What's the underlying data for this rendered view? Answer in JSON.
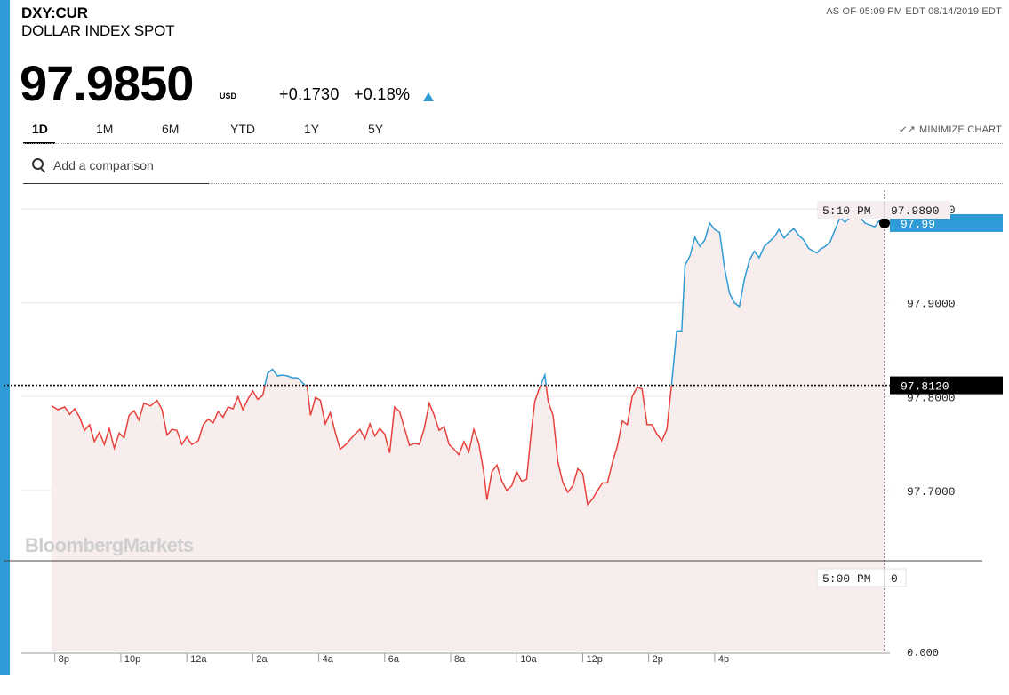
{
  "header": {
    "ticker": "DXY:CUR",
    "name": "DOLLAR INDEX SPOT",
    "as_of": "AS OF 05:09 PM EDT 08/14/2019 EDT",
    "price": "97.9850",
    "currency": "USD",
    "change": "+0.1730",
    "change_pct": "+0.18%"
  },
  "tabs": [
    "1D",
    "1M",
    "6M",
    "YTD",
    "1Y",
    "5Y"
  ],
  "active_tab": "1D",
  "minimize_label": "MINIMIZE CHART",
  "search": {
    "placeholder": "Add a comparison"
  },
  "watermark": "BloombergMarkets",
  "colors": {
    "accent": "#2e9bd6",
    "line_up": "#2e9bd6",
    "line_down": "#e8413c",
    "area_fill": "#f7eded",
    "prev_close_badge": "#000000"
  },
  "chart_data": {
    "type": "line",
    "x_tick_labels": [
      "8p",
      "10p",
      "12a",
      "2a",
      "4a",
      "6a",
      "8a",
      "10a",
      "12p",
      "2p",
      "4p"
    ],
    "y_tick_labels": [
      "98.0000",
      "97.9000",
      "97.8000",
      "97.7000"
    ],
    "y_ticks": [
      98.0,
      97.9,
      97.8,
      97.7
    ],
    "ylim": [
      97.625,
      98.02
    ],
    "hours_from_6pm_range": [
      -0.2,
      23.3
    ],
    "previous_close": 97.812,
    "previous_close_label": "97.8120",
    "last_value_label": "97.99",
    "hover_time_label": "5:10 PM",
    "hover_value_label": "97.9890",
    "volume_time_label": "5:00 PM",
    "volume_value_label": "0",
    "volume_axis_label": "0.000",
    "series": [
      {
        "points": [
          [
            0.0,
            97.79
          ],
          [
            0.2,
            97.786
          ],
          [
            0.4,
            97.789
          ],
          [
            0.55,
            97.781
          ],
          [
            0.7,
            97.787
          ],
          [
            0.85,
            97.778
          ],
          [
            1.0,
            97.764
          ],
          [
            1.15,
            97.77
          ],
          [
            1.3,
            97.752
          ],
          [
            1.45,
            97.762
          ],
          [
            1.6,
            97.749
          ],
          [
            1.75,
            97.766
          ],
          [
            1.9,
            97.745
          ],
          [
            2.05,
            97.761
          ],
          [
            2.2,
            97.756
          ],
          [
            2.35,
            97.78
          ],
          [
            2.5,
            97.785
          ],
          [
            2.65,
            97.775
          ],
          [
            2.8,
            97.793
          ],
          [
            3.0,
            97.79
          ],
          [
            3.2,
            97.796
          ],
          [
            3.35,
            97.786
          ],
          [
            3.5,
            97.759
          ],
          [
            3.65,
            97.765
          ],
          [
            3.8,
            97.764
          ],
          [
            3.95,
            97.749
          ],
          [
            4.1,
            97.757
          ],
          [
            4.25,
            97.749
          ],
          [
            4.45,
            97.753
          ],
          [
            4.6,
            97.77
          ],
          [
            4.75,
            97.776
          ],
          [
            4.9,
            97.772
          ],
          [
            5.05,
            97.784
          ],
          [
            5.2,
            97.778
          ],
          [
            5.35,
            97.789
          ],
          [
            5.5,
            97.787
          ],
          [
            5.65,
            97.8
          ],
          [
            5.8,
            97.786
          ],
          [
            5.95,
            97.797
          ],
          [
            6.1,
            97.806
          ],
          [
            6.25,
            97.797
          ],
          [
            6.4,
            97.801
          ],
          [
            6.55,
            97.825
          ],
          [
            6.7,
            97.829
          ],
          [
            6.85,
            97.822
          ],
          [
            7.0,
            97.823
          ],
          [
            7.15,
            97.822
          ],
          [
            7.3,
            97.82
          ],
          [
            7.45,
            97.82
          ],
          [
            7.6,
            97.815
          ],
          [
            7.75,
            97.81
          ],
          [
            7.85,
            97.78
          ],
          [
            8.0,
            97.799
          ],
          [
            8.15,
            97.796
          ],
          [
            8.3,
            97.771
          ],
          [
            8.45,
            97.783
          ],
          [
            8.6,
            97.762
          ],
          [
            8.75,
            97.744
          ],
          [
            8.9,
            97.748
          ],
          [
            9.05,
            97.754
          ],
          [
            9.2,
            97.76
          ],
          [
            9.35,
            97.765
          ],
          [
            9.5,
            97.755
          ],
          [
            9.65,
            97.771
          ],
          [
            9.8,
            97.758
          ],
          [
            9.95,
            97.766
          ],
          [
            10.1,
            97.76
          ],
          [
            10.25,
            97.74
          ],
          [
            10.4,
            97.789
          ],
          [
            10.55,
            97.784
          ],
          [
            10.7,
            97.766
          ],
          [
            10.85,
            97.748
          ],
          [
            11.0,
            97.75
          ],
          [
            11.15,
            97.749
          ],
          [
            11.3,
            97.766
          ],
          [
            11.45,
            97.793
          ],
          [
            11.6,
            97.78
          ],
          [
            11.75,
            97.764
          ],
          [
            11.9,
            97.768
          ],
          [
            12.05,
            97.749
          ],
          [
            12.2,
            97.744
          ],
          [
            12.35,
            97.738
          ],
          [
            12.5,
            97.752
          ],
          [
            12.65,
            97.741
          ],
          [
            12.8,
            97.765
          ],
          [
            12.95,
            97.75
          ],
          [
            13.1,
            97.72
          ],
          [
            13.2,
            97.69
          ],
          [
            13.35,
            97.72
          ],
          [
            13.5,
            97.727
          ],
          [
            13.65,
            97.71
          ],
          [
            13.8,
            97.7
          ],
          [
            13.95,
            97.705
          ],
          [
            14.1,
            97.72
          ],
          [
            14.25,
            97.71
          ],
          [
            14.4,
            97.712
          ],
          [
            14.55,
            97.765
          ],
          [
            14.65,
            97.795
          ],
          [
            14.8,
            97.81
          ],
          [
            14.95,
            97.823
          ],
          [
            15.05,
            97.795
          ],
          [
            15.2,
            97.78
          ],
          [
            15.35,
            97.73
          ],
          [
            15.5,
            97.708
          ],
          [
            15.65,
            97.698
          ],
          [
            15.8,
            97.705
          ],
          [
            15.95,
            97.723
          ],
          [
            16.1,
            97.718
          ],
          [
            16.25,
            97.685
          ],
          [
            16.4,
            97.691
          ],
          [
            16.55,
            97.7
          ],
          [
            16.7,
            97.708
          ],
          [
            16.85,
            97.708
          ],
          [
            17.0,
            97.73
          ],
          [
            17.15,
            97.747
          ],
          [
            17.3,
            97.774
          ],
          [
            17.45,
            97.77
          ],
          [
            17.6,
            97.8
          ],
          [
            17.75,
            97.81
          ],
          [
            17.9,
            97.808
          ],
          [
            18.05,
            97.77
          ],
          [
            18.2,
            97.77
          ],
          [
            18.35,
            97.76
          ],
          [
            18.5,
            97.753
          ],
          [
            18.65,
            97.765
          ],
          [
            18.8,
            97.815
          ],
          [
            18.95,
            97.87
          ],
          [
            19.1,
            97.87
          ],
          [
            19.2,
            97.94
          ],
          [
            19.35,
            97.95
          ],
          [
            19.5,
            97.97
          ],
          [
            19.65,
            97.96
          ],
          [
            19.8,
            97.967
          ],
          [
            19.95,
            97.985
          ],
          [
            20.1,
            97.978
          ],
          [
            20.25,
            97.975
          ],
          [
            20.4,
            97.937
          ],
          [
            20.55,
            97.91
          ],
          [
            20.7,
            97.9
          ],
          [
            20.85,
            97.896
          ],
          [
            21.0,
            97.925
          ],
          [
            21.15,
            97.945
          ],
          [
            21.3,
            97.955
          ],
          [
            21.45,
            97.948
          ],
          [
            21.6,
            97.96
          ],
          [
            21.75,
            97.965
          ],
          [
            21.9,
            97.97
          ],
          [
            22.05,
            97.978
          ],
          [
            22.2,
            97.969
          ],
          [
            22.35,
            97.975
          ],
          [
            22.5,
            97.979
          ],
          [
            22.65,
            97.972
          ],
          [
            22.8,
            97.967
          ],
          [
            22.95,
            97.958
          ],
          [
            23.1,
            97.955
          ],
          [
            23.2,
            97.953
          ],
          [
            23.3,
            97.957
          ],
          [
            23.45,
            97.96
          ],
          [
            23.6,
            97.965
          ],
          [
            23.75,
            97.978
          ],
          [
            23.9,
            97.991
          ],
          [
            24.05,
            97.986
          ],
          [
            24.2,
            97.991
          ],
          [
            24.35,
            97.998
          ],
          [
            24.5,
            97.992
          ],
          [
            24.65,
            97.985
          ],
          [
            24.8,
            97.983
          ],
          [
            24.95,
            97.981
          ],
          [
            25.1,
            97.988
          ],
          [
            25.25,
            97.985
          ]
        ]
      }
    ]
  }
}
